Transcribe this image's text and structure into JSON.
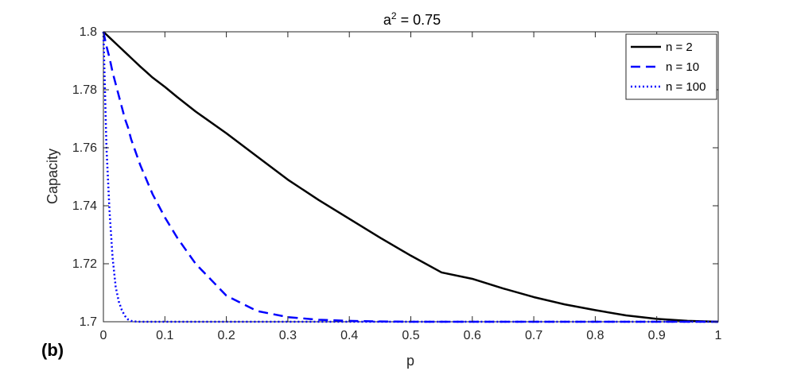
{
  "panel_label": "(b)",
  "chart_data": {
    "type": "line",
    "title": {
      "base": "a",
      "superscript": "2",
      "rest": " = 0.75"
    },
    "xlabel": "p",
    "ylabel": "Capacity",
    "xlim": [
      0,
      1
    ],
    "ylim": [
      1.7,
      1.8
    ],
    "xticks": [
      0,
      0.1,
      0.2,
      0.3,
      0.4,
      0.5,
      0.6,
      0.7,
      0.8,
      0.9,
      1
    ],
    "xtick_labels": [
      "0",
      "0.1",
      "0.2",
      "0.3",
      "0.4",
      "0.5",
      "0.6",
      "0.7",
      "0.8",
      "0.9",
      "1"
    ],
    "yticks": [
      1.7,
      1.72,
      1.74,
      1.76,
      1.78,
      1.8
    ],
    "ytick_labels": [
      "1.7",
      "1.72",
      "1.74",
      "1.76",
      "1.78",
      "1.8"
    ],
    "grid": false,
    "legend_position": "top-right",
    "x": [
      0,
      0.005,
      0.01,
      0.015,
      0.02,
      0.025,
      0.03,
      0.035,
      0.04,
      0.045,
      0.05,
      0.06,
      0.07,
      0.08,
      0.1,
      0.12,
      0.15,
      0.2,
      0.25,
      0.3,
      0.35,
      0.4,
      0.45,
      0.5,
      0.55,
      0.6,
      0.65,
      0.7,
      0.75,
      0.8,
      0.85,
      0.9,
      0.95,
      1
    ],
    "series": [
      {
        "name": "n = 2",
        "color": "#000000",
        "style": "solid",
        "values": [
          1.8,
          1.799,
          1.798,
          1.797,
          1.796,
          1.795,
          1.794,
          1.793,
          1.792,
          1.791,
          1.79,
          1.788,
          1.7861,
          1.7842,
          1.781,
          1.7775,
          1.7725,
          1.765,
          1.757,
          1.749,
          1.742,
          1.7355,
          1.729,
          1.7228,
          1.717,
          1.7148,
          1.7115,
          1.7085,
          1.706,
          1.704,
          1.7022,
          1.701,
          1.7003,
          1.7
        ]
      },
      {
        "name": "n = 10",
        "color": "#0000ff",
        "style": "dashed",
        "values": [
          1.8,
          1.795,
          1.791,
          1.786,
          1.782,
          1.778,
          1.774,
          1.77,
          1.767,
          1.763,
          1.76,
          1.754,
          1.749,
          1.744,
          1.736,
          1.729,
          1.72,
          1.709,
          1.7037,
          1.7016,
          1.7007,
          1.7003,
          1.7001,
          1.7,
          1.7,
          1.7,
          1.7,
          1.7,
          1.7,
          1.7,
          1.7,
          1.7,
          1.7,
          1.7
        ]
      },
      {
        "name": "n = 100",
        "color": "#0000ff",
        "style": "dotted",
        "values": [
          1.8,
          1.76,
          1.738,
          1.722,
          1.712,
          1.707,
          1.704,
          1.702,
          1.7008,
          1.7003,
          1.7001,
          1.7,
          1.7,
          1.7,
          1.7,
          1.7,
          1.7,
          1.7,
          1.7,
          1.7,
          1.7,
          1.7,
          1.7,
          1.7,
          1.7,
          1.7,
          1.7,
          1.7,
          1.7,
          1.7,
          1.7,
          1.7,
          1.7,
          1.7
        ]
      }
    ]
  }
}
